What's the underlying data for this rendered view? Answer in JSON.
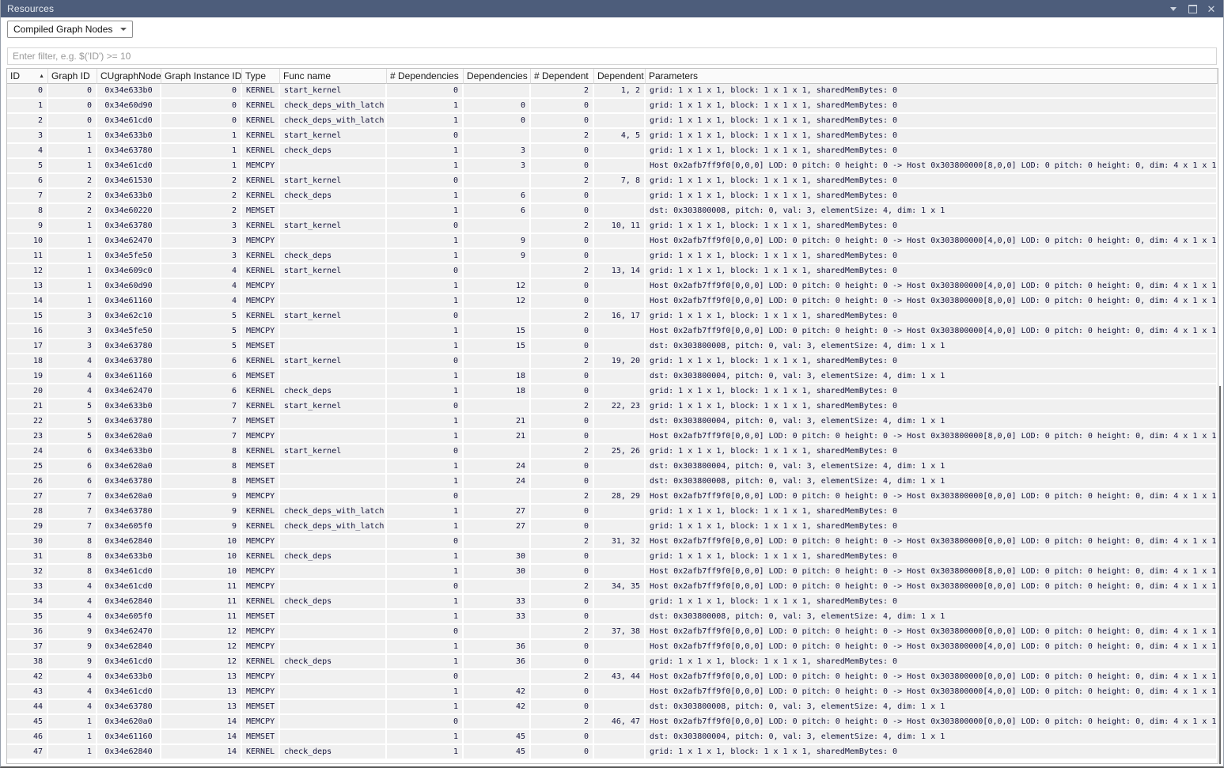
{
  "window": {
    "title": "Resources",
    "controls": [
      "chevron-down-icon",
      "maximize-icon",
      "close-icon"
    ]
  },
  "toolbar": {
    "view_selector_label": "Compiled Graph Nodes"
  },
  "filter": {
    "placeholder": "Enter filter, e.g. $('ID') >= 10",
    "value": ""
  },
  "table": {
    "sort": {
      "column": "ID",
      "direction": "asc"
    },
    "columns": [
      {
        "key": "id",
        "label": "ID",
        "sort": "asc"
      },
      {
        "key": "graph-id",
        "label": "Graph ID"
      },
      {
        "key": "cugraphnode",
        "label": "CUgraphNode"
      },
      {
        "key": "graph-instance-id",
        "label": "Graph Instance ID"
      },
      {
        "key": "type",
        "label": "Type"
      },
      {
        "key": "func-name",
        "label": "Func name"
      },
      {
        "key": "num-dependencies",
        "label": "# Dependencies"
      },
      {
        "key": "dependencies",
        "label": "Dependencies"
      },
      {
        "key": "num-dependent",
        "label": "# Dependent"
      },
      {
        "key": "dependent",
        "label": "Dependent"
      },
      {
        "key": "parameters",
        "label": "Parameters"
      }
    ],
    "rows": [
      [
        "0",
        "0",
        "0x34e633b0",
        "0",
        "KERNEL",
        "start_kernel",
        "0",
        "",
        "2",
        "1, 2",
        "grid: 1 x 1 x 1, block: 1 x 1 x 1, sharedMemBytes: 0"
      ],
      [
        "1",
        "0",
        "0x34e60d90",
        "0",
        "KERNEL",
        "check_deps_with_latch",
        "1",
        "0",
        "0",
        "",
        "grid: 1 x 1 x 1, block: 1 x 1 x 1, sharedMemBytes: 0"
      ],
      [
        "2",
        "0",
        "0x34e61cd0",
        "0",
        "KERNEL",
        "check_deps_with_latch",
        "1",
        "0",
        "0",
        "",
        "grid: 1 x 1 x 1, block: 1 x 1 x 1, sharedMemBytes: 0"
      ],
      [
        "3",
        "1",
        "0x34e633b0",
        "1",
        "KERNEL",
        "start_kernel",
        "0",
        "",
        "2",
        "4, 5",
        "grid: 1 x 1 x 1, block: 1 x 1 x 1, sharedMemBytes: 0"
      ],
      [
        "4",
        "1",
        "0x34e63780",
        "1",
        "KERNEL",
        "check_deps",
        "1",
        "3",
        "0",
        "",
        "grid: 1 x 1 x 1, block: 1 x 1 x 1, sharedMemBytes: 0"
      ],
      [
        "5",
        "1",
        "0x34e61cd0",
        "1",
        "MEMCPY",
        "",
        "1",
        "3",
        "0",
        "",
        "Host 0x2afb7ff9f0[0,0,0] LOD: 0 pitch: 0 height: 0 -> Host 0x303800000[8,0,0] LOD: 0 pitch: 0 height: 0, dim: 4 x 1 x 1"
      ],
      [
        "6",
        "2",
        "0x34e61530",
        "2",
        "KERNEL",
        "start_kernel",
        "0",
        "",
        "2",
        "7, 8",
        "grid: 1 x 1 x 1, block: 1 x 1 x 1, sharedMemBytes: 0"
      ],
      [
        "7",
        "2",
        "0x34e633b0",
        "2",
        "KERNEL",
        "check_deps",
        "1",
        "6",
        "0",
        "",
        "grid: 1 x 1 x 1, block: 1 x 1 x 1, sharedMemBytes: 0"
      ],
      [
        "8",
        "2",
        "0x34e60220",
        "2",
        "MEMSET",
        "",
        "1",
        "6",
        "0",
        "",
        "dst: 0x303800008, pitch: 0, val: 3, elementSize: 4, dim: 1 x 1"
      ],
      [
        "9",
        "1",
        "0x34e63780",
        "3",
        "KERNEL",
        "start_kernel",
        "0",
        "",
        "2",
        "10, 11",
        "grid: 1 x 1 x 1, block: 1 x 1 x 1, sharedMemBytes: 0"
      ],
      [
        "10",
        "1",
        "0x34e62470",
        "3",
        "MEMCPY",
        "",
        "1",
        "9",
        "0",
        "",
        "Host 0x2afb7ff9f0[0,0,0] LOD: 0 pitch: 0 height: 0 -> Host 0x303800000[4,0,0] LOD: 0 pitch: 0 height: 0, dim: 4 x 1 x 1"
      ],
      [
        "11",
        "1",
        "0x34e5fe50",
        "3",
        "KERNEL",
        "check_deps",
        "1",
        "9",
        "0",
        "",
        "grid: 1 x 1 x 1, block: 1 x 1 x 1, sharedMemBytes: 0"
      ],
      [
        "12",
        "1",
        "0x34e609c0",
        "4",
        "KERNEL",
        "start_kernel",
        "0",
        "",
        "2",
        "13, 14",
        "grid: 1 x 1 x 1, block: 1 x 1 x 1, sharedMemBytes: 0"
      ],
      [
        "13",
        "1",
        "0x34e60d90",
        "4",
        "MEMCPY",
        "",
        "1",
        "12",
        "0",
        "",
        "Host 0x2afb7ff9f0[0,0,0] LOD: 0 pitch: 0 height: 0 -> Host 0x303800000[4,0,0] LOD: 0 pitch: 0 height: 0, dim: 4 x 1 x 1"
      ],
      [
        "14",
        "1",
        "0x34e61160",
        "4",
        "MEMCPY",
        "",
        "1",
        "12",
        "0",
        "",
        "Host 0x2afb7ff9f0[0,0,0] LOD: 0 pitch: 0 height: 0 -> Host 0x303800000[8,0,0] LOD: 0 pitch: 0 height: 0, dim: 4 x 1 x 1"
      ],
      [
        "15",
        "3",
        "0x34e62c10",
        "5",
        "KERNEL",
        "start_kernel",
        "0",
        "",
        "2",
        "16, 17",
        "grid: 1 x 1 x 1, block: 1 x 1 x 1, sharedMemBytes: 0"
      ],
      [
        "16",
        "3",
        "0x34e5fe50",
        "5",
        "MEMCPY",
        "",
        "1",
        "15",
        "0",
        "",
        "Host 0x2afb7ff9f0[0,0,0] LOD: 0 pitch: 0 height: 0 -> Host 0x303800000[4,0,0] LOD: 0 pitch: 0 height: 0, dim: 4 x 1 x 1"
      ],
      [
        "17",
        "3",
        "0x34e63780",
        "5",
        "MEMSET",
        "",
        "1",
        "15",
        "0",
        "",
        "dst: 0x303800008, pitch: 0, val: 3, elementSize: 4, dim: 1 x 1"
      ],
      [
        "18",
        "4",
        "0x34e63780",
        "6",
        "KERNEL",
        "start_kernel",
        "0",
        "",
        "2",
        "19, 20",
        "grid: 1 x 1 x 1, block: 1 x 1 x 1, sharedMemBytes: 0"
      ],
      [
        "19",
        "4",
        "0x34e61160",
        "6",
        "MEMSET",
        "",
        "1",
        "18",
        "0",
        "",
        "dst: 0x303800004, pitch: 0, val: 3, elementSize: 4, dim: 1 x 1"
      ],
      [
        "20",
        "4",
        "0x34e62470",
        "6",
        "KERNEL",
        "check_deps",
        "1",
        "18",
        "0",
        "",
        "grid: 1 x 1 x 1, block: 1 x 1 x 1, sharedMemBytes: 0"
      ],
      [
        "21",
        "5",
        "0x34e633b0",
        "7",
        "KERNEL",
        "start_kernel",
        "0",
        "",
        "2",
        "22, 23",
        "grid: 1 x 1 x 1, block: 1 x 1 x 1, sharedMemBytes: 0"
      ],
      [
        "22",
        "5",
        "0x34e63780",
        "7",
        "MEMSET",
        "",
        "1",
        "21",
        "0",
        "",
        "dst: 0x303800004, pitch: 0, val: 3, elementSize: 4, dim: 1 x 1"
      ],
      [
        "23",
        "5",
        "0x34e620a0",
        "7",
        "MEMCPY",
        "",
        "1",
        "21",
        "0",
        "",
        "Host 0x2afb7ff9f0[0,0,0] LOD: 0 pitch: 0 height: 0 -> Host 0x303800000[8,0,0] LOD: 0 pitch: 0 height: 0, dim: 4 x 1 x 1"
      ],
      [
        "24",
        "6",
        "0x34e633b0",
        "8",
        "KERNEL",
        "start_kernel",
        "0",
        "",
        "2",
        "25, 26",
        "grid: 1 x 1 x 1, block: 1 x 1 x 1, sharedMemBytes: 0"
      ],
      [
        "25",
        "6",
        "0x34e620a0",
        "8",
        "MEMSET",
        "",
        "1",
        "24",
        "0",
        "",
        "dst: 0x303800004, pitch: 0, val: 3, elementSize: 4, dim: 1 x 1"
      ],
      [
        "26",
        "6",
        "0x34e63780",
        "8",
        "MEMSET",
        "",
        "1",
        "24",
        "0",
        "",
        "dst: 0x303800008, pitch: 0, val: 3, elementSize: 4, dim: 1 x 1"
      ],
      [
        "27",
        "7",
        "0x34e620a0",
        "9",
        "MEMCPY",
        "",
        "0",
        "",
        "2",
        "28, 29",
        "Host 0x2afb7ff9f0[0,0,0] LOD: 0 pitch: 0 height: 0 -> Host 0x303800000[0,0,0] LOD: 0 pitch: 0 height: 0, dim: 4 x 1 x 1"
      ],
      [
        "28",
        "7",
        "0x34e63780",
        "9",
        "KERNEL",
        "check_deps_with_latch",
        "1",
        "27",
        "0",
        "",
        "grid: 1 x 1 x 1, block: 1 x 1 x 1, sharedMemBytes: 0"
      ],
      [
        "29",
        "7",
        "0x34e605f0",
        "9",
        "KERNEL",
        "check_deps_with_latch",
        "1",
        "27",
        "0",
        "",
        "grid: 1 x 1 x 1, block: 1 x 1 x 1, sharedMemBytes: 0"
      ],
      [
        "30",
        "8",
        "0x34e62840",
        "10",
        "MEMCPY",
        "",
        "0",
        "",
        "2",
        "31, 32",
        "Host 0x2afb7ff9f0[0,0,0] LOD: 0 pitch: 0 height: 0 -> Host 0x303800000[0,0,0] LOD: 0 pitch: 0 height: 0, dim: 4 x 1 x 1"
      ],
      [
        "31",
        "8",
        "0x34e633b0",
        "10",
        "KERNEL",
        "check_deps",
        "1",
        "30",
        "0",
        "",
        "grid: 1 x 1 x 1, block: 1 x 1 x 1, sharedMemBytes: 0"
      ],
      [
        "32",
        "8",
        "0x34e61cd0",
        "10",
        "MEMCPY",
        "",
        "1",
        "30",
        "0",
        "",
        "Host 0x2afb7ff9f0[0,0,0] LOD: 0 pitch: 0 height: 0 -> Host 0x303800000[8,0,0] LOD: 0 pitch: 0 height: 0, dim: 4 x 1 x 1"
      ],
      [
        "33",
        "4",
        "0x34e61cd0",
        "11",
        "MEMCPY",
        "",
        "0",
        "",
        "2",
        "34, 35",
        "Host 0x2afb7ff9f0[0,0,0] LOD: 0 pitch: 0 height: 0 -> Host 0x303800000[0,0,0] LOD: 0 pitch: 0 height: 0, dim: 4 x 1 x 1"
      ],
      [
        "34",
        "4",
        "0x34e62840",
        "11",
        "KERNEL",
        "check_deps",
        "1",
        "33",
        "0",
        "",
        "grid: 1 x 1 x 1, block: 1 x 1 x 1, sharedMemBytes: 0"
      ],
      [
        "35",
        "4",
        "0x34e605f0",
        "11",
        "MEMSET",
        "",
        "1",
        "33",
        "0",
        "",
        "dst: 0x303800008, pitch: 0, val: 3, elementSize: 4, dim: 1 x 1"
      ],
      [
        "36",
        "9",
        "0x34e62470",
        "12",
        "MEMCPY",
        "",
        "0",
        "",
        "2",
        "37, 38",
        "Host 0x2afb7ff9f0[0,0,0] LOD: 0 pitch: 0 height: 0 -> Host 0x303800000[0,0,0] LOD: 0 pitch: 0 height: 0, dim: 4 x 1 x 1"
      ],
      [
        "37",
        "9",
        "0x34e62840",
        "12",
        "MEMCPY",
        "",
        "1",
        "36",
        "0",
        "",
        "Host 0x2afb7ff9f0[0,0,0] LOD: 0 pitch: 0 height: 0 -> Host 0x303800000[4,0,0] LOD: 0 pitch: 0 height: 0, dim: 4 x 1 x 1"
      ],
      [
        "38",
        "9",
        "0x34e61cd0",
        "12",
        "KERNEL",
        "check_deps",
        "1",
        "36",
        "0",
        "",
        "grid: 1 x 1 x 1, block: 1 x 1 x 1, sharedMemBytes: 0"
      ],
      [
        "42",
        "4",
        "0x34e633b0",
        "13",
        "MEMCPY",
        "",
        "0",
        "",
        "2",
        "43, 44",
        "Host 0x2afb7ff9f0[0,0,0] LOD: 0 pitch: 0 height: 0 -> Host 0x303800000[0,0,0] LOD: 0 pitch: 0 height: 0, dim: 4 x 1 x 1"
      ],
      [
        "43",
        "4",
        "0x34e61cd0",
        "13",
        "MEMCPY",
        "",
        "1",
        "42",
        "0",
        "",
        "Host 0x2afb7ff9f0[0,0,0] LOD: 0 pitch: 0 height: 0 -> Host 0x303800000[4,0,0] LOD: 0 pitch: 0 height: 0, dim: 4 x 1 x 1"
      ],
      [
        "44",
        "4",
        "0x34e63780",
        "13",
        "MEMSET",
        "",
        "1",
        "42",
        "0",
        "",
        "dst: 0x303800008, pitch: 0, val: 3, elementSize: 4, dim: 1 x 1"
      ],
      [
        "45",
        "1",
        "0x34e620a0",
        "14",
        "MEMCPY",
        "",
        "0",
        "",
        "2",
        "46, 47",
        "Host 0x2afb7ff9f0[0,0,0] LOD: 0 pitch: 0 height: 0 -> Host 0x303800000[0,0,0] LOD: 0 pitch: 0 height: 0, dim: 4 x 1 x 1"
      ],
      [
        "46",
        "1",
        "0x34e61160",
        "14",
        "MEMSET",
        "",
        "1",
        "45",
        "0",
        "",
        "dst: 0x303800004, pitch: 0, val: 3, elementSize: 4, dim: 1 x 1"
      ],
      [
        "47",
        "1",
        "0x34e62840",
        "14",
        "KERNEL",
        "check_deps",
        "1",
        "45",
        "0",
        "",
        "grid: 1 x 1 x 1, block: 1 x 1 x 1, sharedMemBytes: 0"
      ]
    ]
  },
  "colors": {
    "titlebar": "#4d5d7b",
    "row_background": "#f0f0f0",
    "cell_text": "#12123a"
  }
}
